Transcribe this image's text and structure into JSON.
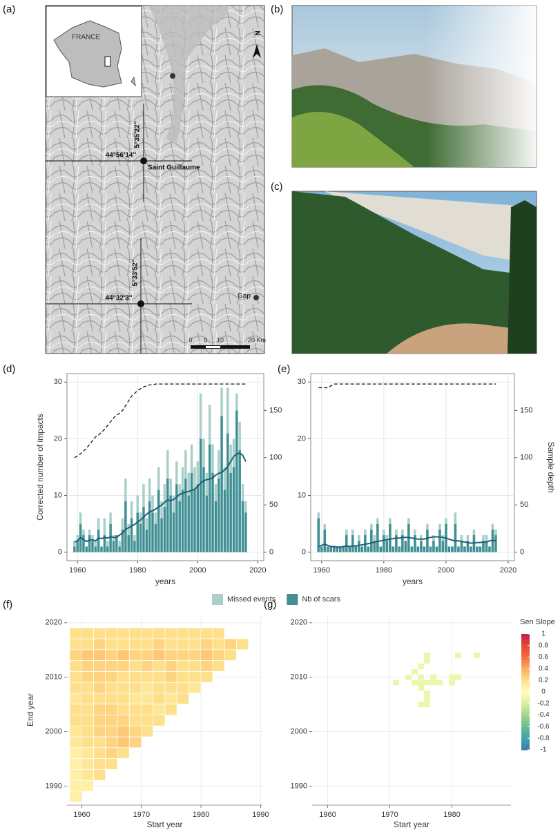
{
  "map": {
    "label": "(a)",
    "inset_label": "FRANCE",
    "north": "N",
    "lon_top": "5°35'22''",
    "lat_top": "44°56'14''",
    "site": "Saint Guillaume",
    "lon_bottom": "5°33'52''",
    "lat_bottom": "44°32'3''",
    "town": "Gap",
    "scale": [
      "0",
      "5",
      "10",
      "20 Km"
    ]
  },
  "photos": [
    {
      "label": "(b)"
    },
    {
      "label": "(c)"
    }
  ],
  "chart_data": [
    {
      "type": "bar",
      "label": "(d)",
      "xlabel": "years",
      "ylabel": "Corrected number of impacts",
      "x": [
        1959,
        1960,
        1961,
        1962,
        1963,
        1964,
        1965,
        1966,
        1967,
        1968,
        1969,
        1970,
        1971,
        1972,
        1973,
        1974,
        1975,
        1976,
        1977,
        1978,
        1979,
        1980,
        1981,
        1982,
        1983,
        1984,
        1985,
        1986,
        1987,
        1988,
        1989,
        1990,
        1991,
        1992,
        1993,
        1994,
        1995,
        1996,
        1997,
        1998,
        1999,
        2000,
        2001,
        2002,
        2003,
        2004,
        2005,
        2006,
        2007,
        2008,
        2009,
        2010,
        2011,
        2012,
        2013,
        2014,
        2015,
        2016
      ],
      "series": [
        {
          "name": "Nb of scars",
          "type": "bar",
          "color": "#3f8f94",
          "values": [
            1,
            2,
            5,
            3,
            1,
            3,
            2,
            1,
            4,
            1,
            3,
            1,
            5,
            2,
            3,
            1,
            4,
            9,
            3,
            6,
            2,
            7,
            5,
            8,
            4,
            9,
            7,
            5,
            11,
            6,
            8,
            13,
            10,
            7,
            12,
            9,
            11,
            13,
            10,
            14,
            11,
            12,
            20,
            15,
            10,
            19,
            14,
            9,
            13,
            24,
            11,
            21,
            14,
            15,
            25,
            18,
            9,
            7
          ]
        },
        {
          "name": "Missed events",
          "type": "bar",
          "color": "#a9cfc9",
          "values": [
            1,
            1,
            2,
            1,
            0,
            1,
            1,
            1,
            2,
            0,
            3,
            1,
            2,
            1,
            0,
            1,
            2,
            4,
            2,
            3,
            1,
            3,
            2,
            4,
            2,
            4,
            3,
            2,
            4,
            3,
            4,
            5,
            3,
            3,
            4,
            3,
            4,
            5,
            4,
            5,
            4,
            4,
            8,
            5,
            4,
            7,
            5,
            3,
            5,
            5,
            4,
            8,
            5,
            5,
            3,
            5,
            3,
            2
          ]
        },
        {
          "type": "line",
          "color": "#1a5f78",
          "values": [
            1.8,
            2.0,
            2.6,
            2.2,
            1.9,
            2.1,
            2.2,
            2.0,
            2.5,
            2.4,
            2.6,
            2.5,
            2.7,
            2.6,
            2.6,
            3.0,
            3.4,
            4.0,
            4.3,
            4.6,
            4.9,
            5.3,
            5.7,
            6.2,
            6.7,
            7.1,
            7.3,
            7.6,
            8.0,
            8.3,
            8.8,
            9.2,
            9.1,
            9.3,
            9.7,
            10.2,
            10.4,
            10.6,
            10.7,
            10.9,
            11.1,
            11.6,
            12.2,
            12.6,
            12.8,
            12.9,
            13.1,
            13.6,
            13.9,
            14.1,
            14.5,
            15.1,
            16.0,
            16.9,
            17.3,
            17.5,
            17.1,
            16.0
          ]
        },
        {
          "type": "line",
          "dashed": true,
          "axis": "y2",
          "color": "#111111",
          "values": [
            100,
            102,
            104,
            107,
            110,
            114,
            118,
            122,
            124,
            127,
            130,
            134,
            138,
            142,
            145,
            147,
            150,
            155,
            160,
            165,
            168,
            171,
            173,
            175,
            176,
            177,
            177,
            178,
            178,
            178,
            178,
            178,
            178,
            178,
            178,
            178,
            178,
            178,
            178,
            178,
            178,
            178,
            178,
            178,
            178,
            178,
            178,
            178,
            178,
            178,
            178,
            178,
            178,
            178,
            178,
            178,
            178,
            178
          ]
        }
      ],
      "xlim": [
        1956.5,
        2022
      ],
      "xticks": [
        1960,
        1980,
        2000,
        2020
      ],
      "ylim": [
        -1.5,
        31.5
      ],
      "yticks": [
        0,
        10,
        20,
        30
      ],
      "y2lim": [
        -9,
        189
      ],
      "y2ticks": [
        0,
        50,
        100,
        150
      ],
      "grid": true
    },
    {
      "type": "bar",
      "label": "(e)",
      "xlabel": "years",
      "y2label": "Sample depth",
      "x": [
        1959,
        1960,
        1961,
        1962,
        1963,
        1964,
        1965,
        1966,
        1967,
        1968,
        1969,
        1970,
        1971,
        1972,
        1973,
        1974,
        1975,
        1976,
        1977,
        1978,
        1979,
        1980,
        1981,
        1982,
        1983,
        1984,
        1985,
        1986,
        1987,
        1988,
        1989,
        1990,
        1991,
        1992,
        1993,
        1994,
        1995,
        1996,
        1997,
        1998,
        1999,
        2000,
        2001,
        2002,
        2003,
        2004,
        2005,
        2006,
        2007,
        2008,
        2009,
        2010,
        2011,
        2012,
        2013,
        2014,
        2015,
        2016
      ],
      "series": [
        {
          "type": "bar",
          "color": "#3f8f94",
          "values": [
            6,
            1,
            4,
            1,
            1,
            1,
            1,
            1,
            1,
            3,
            1,
            3,
            1,
            2,
            1,
            3,
            1,
            4,
            2,
            5,
            1,
            3,
            2,
            5,
            1,
            3,
            1,
            3,
            2,
            5,
            1,
            3,
            1,
            2,
            1,
            4,
            1,
            2,
            1,
            4,
            2,
            5,
            1,
            1,
            5,
            1,
            2,
            1,
            2,
            1,
            3,
            1,
            1,
            2,
            2,
            1,
            4,
            3
          ]
        },
        {
          "type": "bar",
          "color": "#a9cfc9",
          "values": [
            1,
            0,
            1,
            0,
            0,
            0,
            0,
            0,
            0,
            1,
            0,
            1,
            0,
            1,
            0,
            1,
            0,
            1,
            1,
            1,
            0,
            1,
            1,
            1,
            0,
            1,
            0,
            1,
            0,
            1,
            0,
            1,
            0,
            1,
            0,
            1,
            0,
            1,
            0,
            1,
            1,
            1,
            0,
            0,
            2,
            0,
            1,
            0,
            1,
            0,
            1,
            0,
            0,
            1,
            1,
            0,
            1,
            1
          ]
        },
        {
          "type": "line",
          "color": "#1a5f78",
          "values": [
            1.0,
            1.2,
            1.4,
            1.2,
            1.0,
            1.0,
            0.9,
            0.9,
            1.0,
            1.1,
            1.0,
            1.1,
            1.1,
            1.2,
            1.3,
            1.4,
            1.5,
            1.6,
            1.8,
            1.9,
            2.0,
            2.1,
            2.2,
            2.3,
            2.4,
            2.5,
            2.5,
            2.6,
            2.6,
            2.6,
            2.5,
            2.4,
            2.3,
            2.3,
            2.3,
            2.5,
            2.6,
            2.7,
            2.7,
            2.7,
            2.6,
            2.5,
            2.3,
            2.1,
            2.0,
            2.0,
            1.9,
            1.8,
            1.7,
            1.6,
            1.6,
            1.7,
            1.7,
            1.8,
            1.8,
            2.0,
            2.1,
            2.0
          ]
        },
        {
          "type": "line",
          "dashed": true,
          "axis": "y2",
          "color": "#111111",
          "values": [
            174,
            174,
            174,
            174,
            176,
            178,
            178,
            178,
            178,
            178,
            178,
            178,
            178,
            178,
            178,
            178,
            178,
            178,
            178,
            178,
            178,
            178,
            178,
            178,
            178,
            178,
            178,
            178,
            178,
            178,
            178,
            178,
            178,
            178,
            178,
            178,
            178,
            178,
            178,
            178,
            178,
            178,
            178,
            178,
            178,
            178,
            178,
            178,
            178,
            178,
            178,
            178,
            178,
            178,
            178,
            178,
            178,
            178
          ]
        }
      ],
      "xlim": [
        1956.5,
        2022
      ],
      "xticks": [
        1960,
        1980,
        2000,
        2020
      ],
      "ylim": [
        -1.5,
        31.5
      ],
      "yticks": [
        0,
        10,
        20,
        30
      ],
      "y2lim": [
        -9,
        189
      ],
      "y2ticks": [
        0,
        50,
        100,
        150
      ],
      "grid": true
    },
    {
      "type": "heatmap",
      "label": "(f)",
      "xlabel": "Start year",
      "ylabel": "End year",
      "x": [
        1959,
        1961,
        1963,
        1965,
        1967,
        1969,
        1971,
        1973,
        1975,
        1977,
        1979,
        1981,
        1983,
        1985,
        1987
      ],
      "y": [
        1988,
        1990,
        1992,
        1994,
        1996,
        1998,
        2000,
        2002,
        2004,
        2006,
        2008,
        2010,
        2012,
        2014,
        2016,
        2018
      ],
      "z": [
        [
          0.1
        ],
        [
          0.1,
          0.1
        ],
        [
          0.1,
          0.15,
          0.2
        ],
        [
          0.1,
          0.15,
          0.2,
          0.2
        ],
        [
          0.1,
          0.15,
          0.2,
          0.25,
          0.2
        ],
        [
          0.15,
          0.2,
          0.2,
          0.25,
          0.3,
          0.25
        ],
        [
          0.15,
          0.2,
          0.25,
          0.25,
          0.3,
          0.25,
          0.2
        ],
        [
          0.2,
          0.2,
          0.25,
          0.25,
          0.25,
          0.2,
          0.2,
          0.2
        ],
        [
          0.2,
          0.2,
          0.25,
          0.25,
          0.2,
          0.2,
          0.2,
          0.15,
          0.2
        ],
        [
          0.15,
          0.2,
          0.2,
          0.2,
          0.2,
          0.15,
          0.15,
          0.2,
          0.15,
          0.2
        ],
        [
          0.2,
          0.2,
          0.25,
          0.2,
          0.2,
          0.2,
          0.15,
          0.2,
          0.2,
          0.2,
          0.15
        ],
        [
          0.2,
          0.25,
          0.25,
          0.25,
          0.2,
          0.2,
          0.2,
          0.2,
          0.25,
          0.2,
          0.2,
          0.2
        ],
        [
          0.2,
          0.25,
          0.25,
          0.25,
          0.25,
          0.2,
          0.25,
          0.2,
          0.25,
          0.2,
          0.2,
          0.25,
          0.2
        ],
        [
          0.25,
          0.3,
          0.3,
          0.25,
          0.3,
          0.25,
          0.25,
          0.3,
          0.25,
          0.25,
          0.25,
          0.3,
          0.25,
          0.2
        ],
        [
          0.2,
          0.2,
          0.25,
          0.2,
          0.2,
          0.2,
          0.2,
          0.25,
          0.2,
          0.2,
          0.2,
          0.25,
          0.2,
          0.25,
          0.2
        ],
        [
          0.2,
          0.2,
          0.2,
          0.2,
          0.2,
          0.2,
          0.2,
          0.2,
          0.2,
          0.2,
          0.2,
          0.2,
          0.2
        ]
      ],
      "xlim": [
        1957.5,
        1990.3
      ],
      "xticks": [
        1960,
        1970,
        1980,
        1990
      ],
      "ylim": [
        1986.5,
        2021.5
      ],
      "yticks": [
        1990,
        2000,
        2010,
        2020
      ],
      "grid": true,
      "colors": [
        "#4575b4",
        "#3aa7a6",
        "#66bd8a",
        "#9fd38a",
        "#d9ef9b",
        "#ffffbf",
        "#fee08b",
        "#fdae61",
        "#f46d43",
        "#e34a33",
        "#c51b4a"
      ],
      "clim": [
        -1,
        1
      ]
    },
    {
      "type": "heatmap",
      "label": "(g)",
      "xlabel": "Start year",
      "x": [
        1971,
        1973,
        1974,
        1974,
        1975,
        1975,
        1975,
        1975,
        1976,
        1976,
        1976,
        1976,
        1976,
        1977,
        1977,
        1978,
        1980,
        1980,
        1981,
        1981,
        1984,
        1975,
        1976
      ],
      "y": [
        2009,
        2010,
        2009,
        2011,
        2008,
        2009,
        2010,
        2012,
        2006,
        2007,
        2009,
        2013,
        2014,
        2009,
        2010,
        2009,
        2009,
        2010,
        2010,
        2014,
        2014,
        2005,
        2005
      ],
      "values": [
        -0.1,
        -0.1,
        -0.1,
        -0.1,
        -0.1,
        -0.1,
        -0.1,
        -0.1,
        -0.1,
        -0.1,
        -0.1,
        -0.1,
        -0.1,
        -0.1,
        -0.1,
        -0.1,
        -0.1,
        -0.1,
        -0.1,
        -0.1,
        -0.1,
        -0.1,
        -0.1
      ],
      "xlim": [
        1957.5,
        1989.5
      ],
      "xticks": [
        1960,
        1970,
        1980
      ],
      "ylim": [
        1986.5,
        2021.5
      ],
      "yticks": [
        1990,
        2000,
        2010,
        2020
      ],
      "grid": true,
      "colors": [
        "#4575b4",
        "#3aa7a6",
        "#66bd8a",
        "#9fd38a",
        "#d9ef9b",
        "#ffffbf",
        "#fee08b",
        "#fdae61",
        "#f46d43",
        "#e34a33",
        "#c51b4a"
      ],
      "clim": [
        -1,
        1
      ],
      "colorbar": {
        "title": "Sen Slope",
        "ticks": [
          1,
          0.8,
          0.6,
          0.4,
          0.2,
          0,
          -0.2,
          -0.4,
          -0.6,
          -0.8,
          -1
        ]
      }
    }
  ]
}
